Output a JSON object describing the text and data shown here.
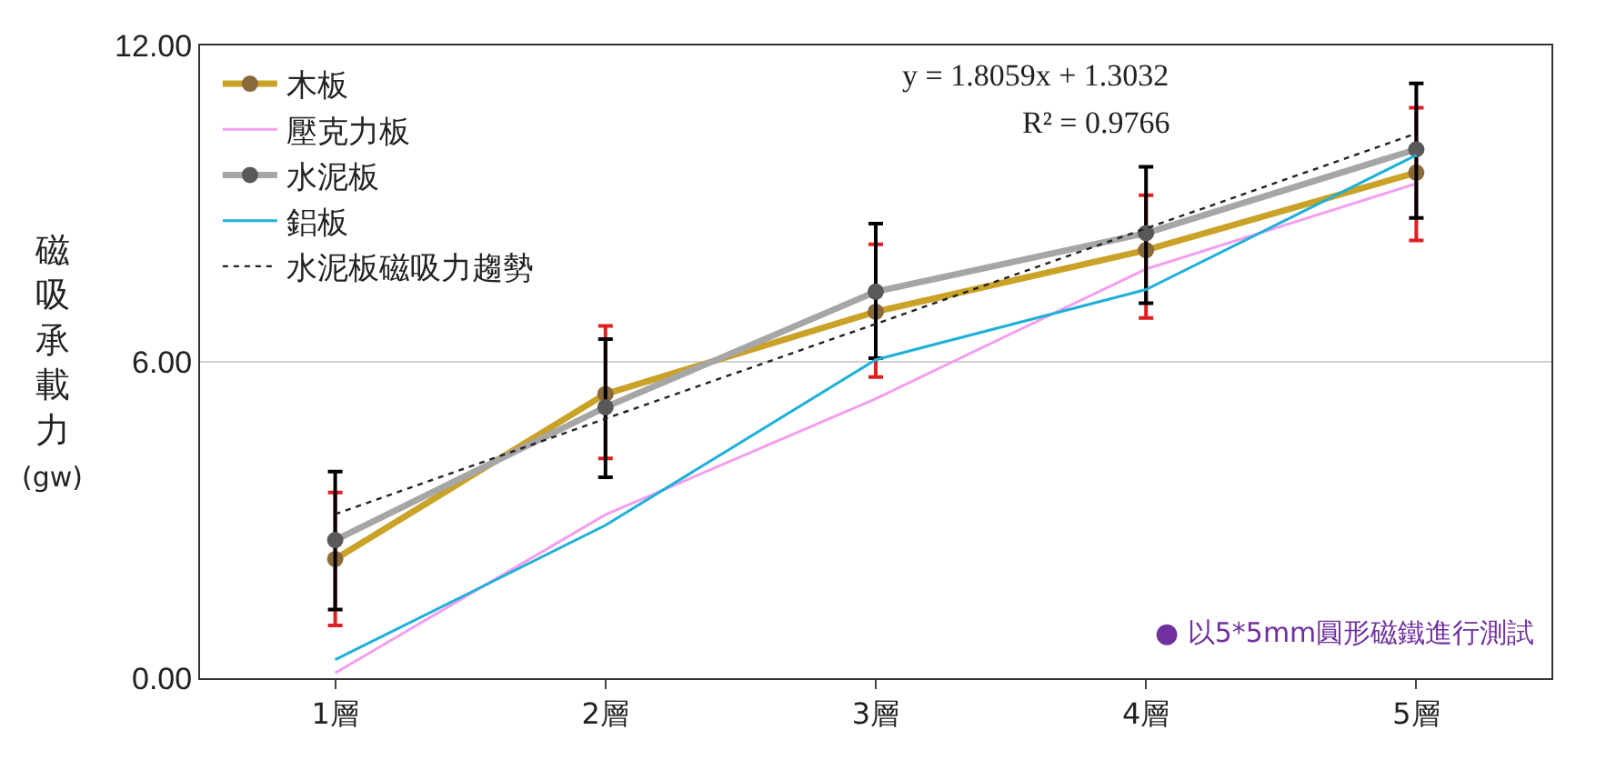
{
  "chart_data": {
    "type": "line",
    "ylabel": "磁吸承載力(gw)",
    "categories": [
      "1層",
      "2層",
      "3層",
      "4層",
      "5層"
    ],
    "ylim": [
      0,
      12
    ],
    "yticks": [
      {
        "value": 0,
        "label": "0.00"
      },
      {
        "value": 6,
        "label": "6.00"
      },
      {
        "value": 12,
        "label": "12.00"
      }
    ],
    "grid": "y",
    "legend": "top left",
    "series": [
      {
        "name": "木板",
        "color": "#c9a227",
        "marker": "circle",
        "values": [
          2.26,
          5.39,
          6.95,
          8.12,
          9.59
        ],
        "errors": [
          [
            1.0,
            3.52
          ],
          [
            4.17,
            6.68
          ],
          [
            5.71,
            8.23
          ],
          [
            6.83,
            9.16
          ],
          [
            8.3,
            10.82
          ]
        ]
      },
      {
        "name": "壓克力板",
        "color": "#f49ef0",
        "marker": "none",
        "values": [
          0.1,
          3.1,
          5.3,
          7.76,
          9.38
        ]
      },
      {
        "name": "水泥板",
        "color": "#a6a6a6",
        "marker": "circle",
        "values": [
          2.62,
          5.14,
          7.33,
          8.44,
          10.03
        ],
        "errors": [
          [
            1.3,
            3.92
          ],
          [
            3.81,
            6.43
          ],
          [
            6.07,
            8.62
          ],
          [
            7.11,
            9.7
          ],
          [
            8.73,
            11.28
          ]
        ]
      },
      {
        "name": "鋁板",
        "color": "#1fb0d8",
        "marker": "none",
        "values": [
          0.35,
          2.9,
          6.04,
          7.37,
          9.92
        ]
      },
      {
        "name": "水泥板磁吸力趨勢",
        "color": "#222222",
        "marker": "none",
        "line_style": "dotted",
        "values": [
          3.11,
          4.92,
          6.72,
          8.53,
          10.33
        ]
      }
    ],
    "annotations": [
      "y = 1.8059x + 1.3032",
      "R² = 0.9766",
      "● 以5*5mm圓形磁鐵進行測試"
    ]
  }
}
